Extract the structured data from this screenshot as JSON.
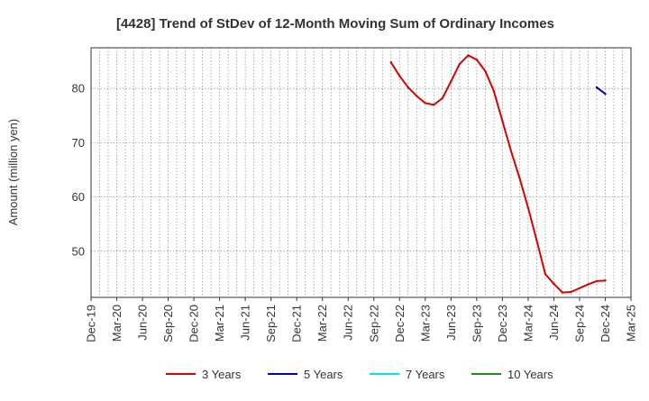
{
  "chart_data": {
    "type": "line",
    "title": "[4428]  Trend of StDev of 12-Month Moving Sum of Ordinary Incomes",
    "ylabel": "Amount (million yen)",
    "xlabel": "",
    "ylim": [
      41.5,
      87.5
    ],
    "yticks": [
      50,
      60,
      70,
      80
    ],
    "x_range_months": [
      "2019-12",
      "2025-03"
    ],
    "xtick_labels": [
      "Dec-19",
      "Mar-20",
      "Jun-20",
      "Sep-20",
      "Dec-20",
      "Mar-21",
      "Jun-21",
      "Sep-21",
      "Dec-21",
      "Mar-22",
      "Jun-22",
      "Sep-22",
      "Dec-22",
      "Mar-23",
      "Jun-23",
      "Sep-23",
      "Dec-23",
      "Mar-24",
      "Jun-24",
      "Sep-24",
      "Dec-24",
      "Mar-25"
    ],
    "grid": true,
    "legend_position": "bottom",
    "series": [
      {
        "name": "3 Years",
        "color": "#dd0000",
        "points": [
          [
            "2022-11",
            84.8
          ],
          [
            "2022-12",
            82.3
          ],
          [
            "2023-01",
            80.2
          ],
          [
            "2023-02",
            78.6
          ],
          [
            "2023-03",
            77.3
          ],
          [
            "2023-04",
            77.0
          ],
          [
            "2023-05",
            78.2
          ],
          [
            "2023-06",
            81.3
          ],
          [
            "2023-07",
            84.5
          ],
          [
            "2023-08",
            86.1
          ],
          [
            "2023-09",
            85.3
          ],
          [
            "2023-10",
            83.2
          ],
          [
            "2023-11",
            79.5
          ],
          [
            "2023-12",
            74.0
          ],
          [
            "2024-01",
            68.5
          ],
          [
            "2024-02",
            63.5
          ],
          [
            "2024-03",
            58.0
          ],
          [
            "2024-04",
            52.0
          ],
          [
            "2024-05",
            45.8
          ],
          [
            "2024-06",
            44.0
          ],
          [
            "2024-07",
            42.4
          ],
          [
            "2024-08",
            42.5
          ],
          [
            "2024-09",
            43.2
          ],
          [
            "2024-10",
            43.9
          ],
          [
            "2024-11",
            44.5
          ],
          [
            "2024-12",
            44.6
          ]
        ]
      },
      {
        "name": "5 Years",
        "color": "#0000cc",
        "points": [
          [
            "2024-11",
            80.2
          ],
          [
            "2024-12",
            79.0
          ]
        ]
      },
      {
        "name": "7 Years",
        "color": "#00e5ee",
        "points": []
      },
      {
        "name": "10 Years",
        "color": "#228b22",
        "points": []
      }
    ]
  }
}
